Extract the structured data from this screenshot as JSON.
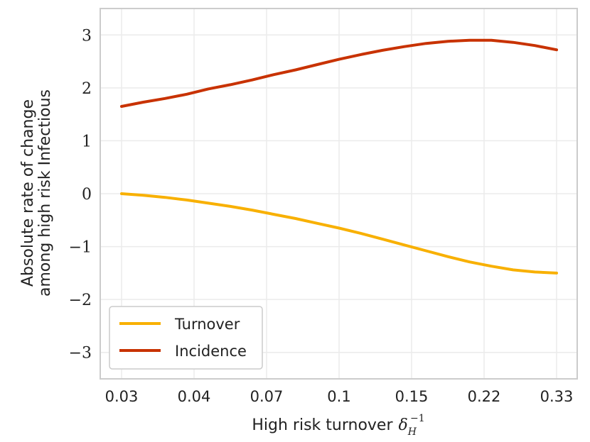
{
  "chart_data": {
    "type": "line",
    "title": "",
    "xlabel": "High risk turnover",
    "xlabel_symbol": "δ",
    "xlabel_sub": "H",
    "xlabel_sup": "−1",
    "ylabel_line1": "Absolute rate of change",
    "ylabel_line2": "among high risk Infectious",
    "x_tick_labels": [
      "0.03",
      "0.04",
      "0.07",
      "0.1",
      "0.15",
      "0.22",
      "0.33"
    ],
    "y_ticks": [
      -3,
      -2,
      -1,
      0,
      1,
      2,
      3
    ],
    "y_tick_labels": [
      "−3",
      "−2",
      "−1",
      "0",
      "1",
      "2",
      "3"
    ],
    "ylim": [
      -3.5,
      3.5
    ],
    "grid": true,
    "legend_position": "lower-left",
    "x": [
      0.0,
      0.05,
      0.1,
      0.15,
      0.2,
      0.25,
      0.3,
      0.35,
      0.4,
      0.45,
      0.5,
      0.55,
      0.6,
      0.65,
      0.7,
      0.75,
      0.8,
      0.85,
      0.9,
      0.95,
      1.0
    ],
    "series": [
      {
        "name": "Turnover",
        "color": "#f8b000",
        "values": [
          0.0,
          -0.03,
          -0.07,
          -0.12,
          -0.18,
          -0.24,
          -0.31,
          -0.39,
          -0.47,
          -0.56,
          -0.65,
          -0.75,
          -0.86,
          -0.97,
          -1.08,
          -1.19,
          -1.29,
          -1.37,
          -1.44,
          -1.48,
          -1.5
        ]
      },
      {
        "name": "Incidence",
        "color": "#c83200",
        "values": [
          1.65,
          1.73,
          1.8,
          1.88,
          1.98,
          2.06,
          2.15,
          2.25,
          2.34,
          2.44,
          2.54,
          2.63,
          2.71,
          2.78,
          2.84,
          2.88,
          2.9,
          2.9,
          2.86,
          2.8,
          2.72
        ]
      }
    ]
  }
}
